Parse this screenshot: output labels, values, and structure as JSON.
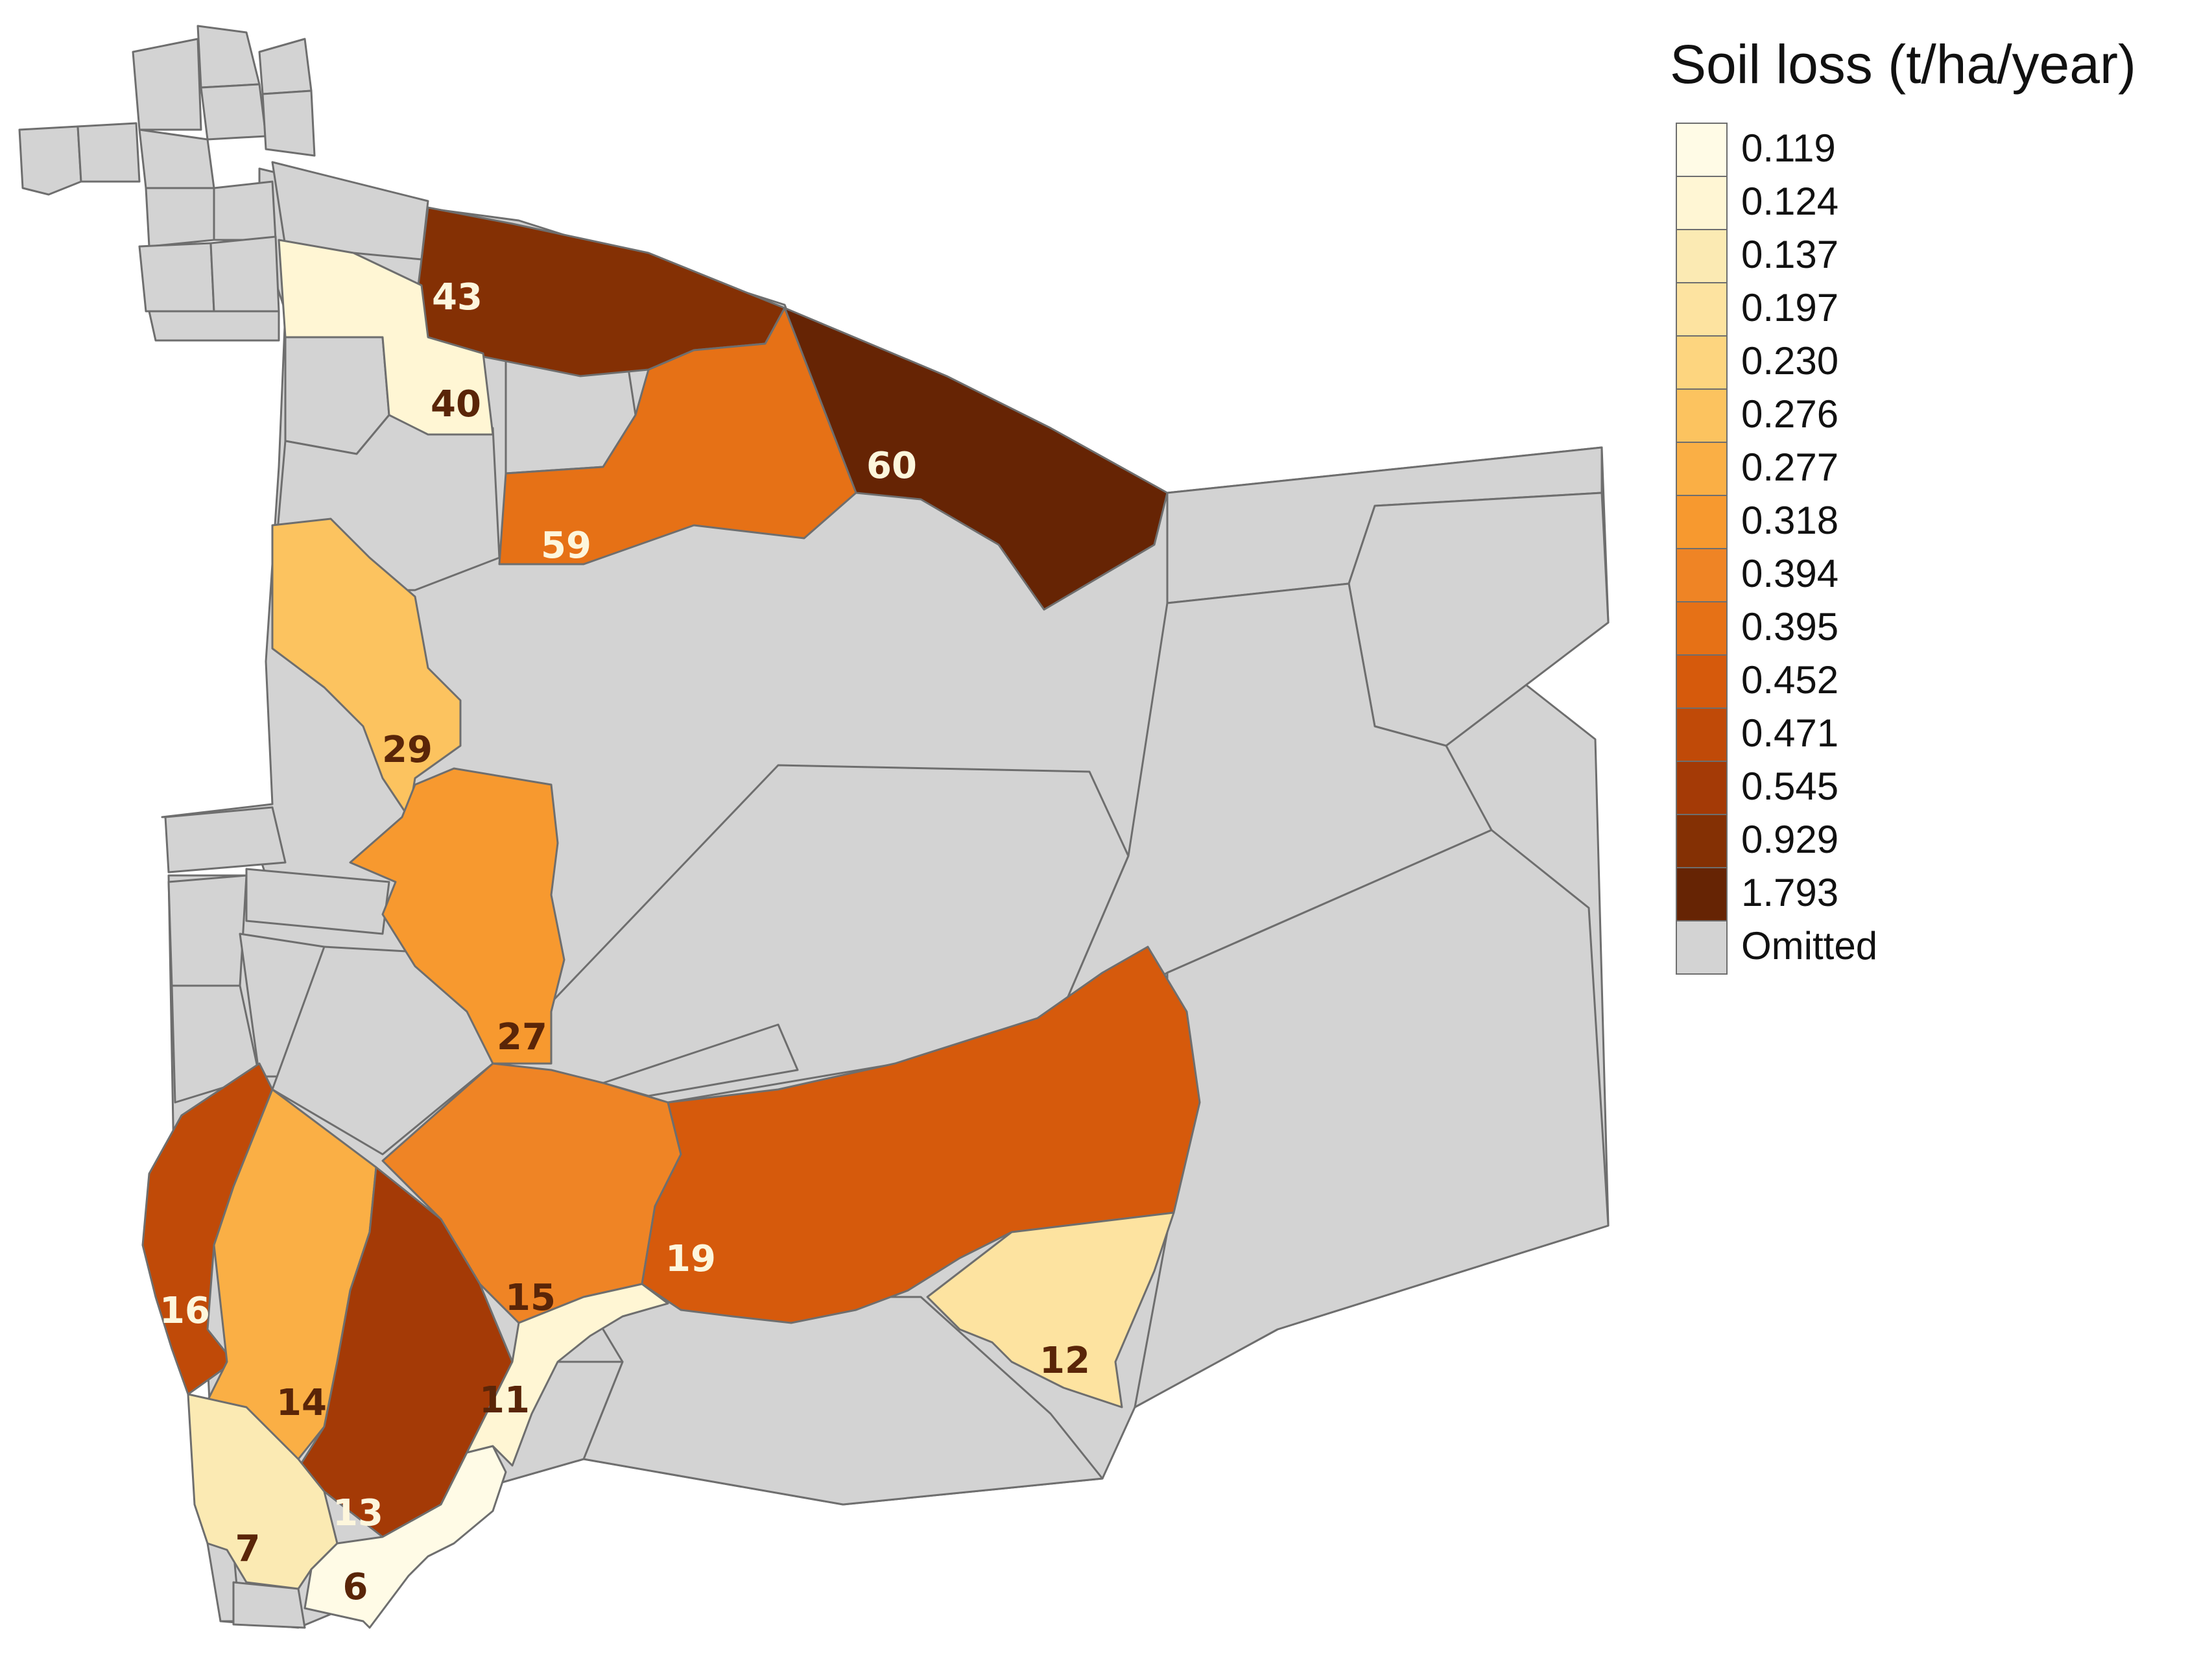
{
  "legend": {
    "title": "Soil loss (t/ha/year)",
    "items": [
      {
        "label": "0.119",
        "color": "#fffbe6"
      },
      {
        "label": "0.124",
        "color": "#fff6d4"
      },
      {
        "label": "0.137",
        "color": "#fbeab3"
      },
      {
        "label": "0.197",
        "color": "#fde3a0"
      },
      {
        "label": "0.230",
        "color": "#fdd57f"
      },
      {
        "label": "0.276",
        "color": "#fcc35f"
      },
      {
        "label": "0.277",
        "color": "#faaf45"
      },
      {
        "label": "0.318",
        "color": "#f7992f"
      },
      {
        "label": "0.394",
        "color": "#ef8425"
      },
      {
        "label": "0.395",
        "color": "#e67116"
      },
      {
        "label": "0.452",
        "color": "#d65a0c"
      },
      {
        "label": "0.471",
        "color": "#c04a08"
      },
      {
        "label": "0.545",
        "color": "#a43a06"
      },
      {
        "label": "0.929",
        "color": "#843004"
      },
      {
        "label": "1.793",
        "color": "#662404"
      },
      {
        "label": "Omitted",
        "color": "#d3d3d3"
      }
    ]
  },
  "watersheds": [
    {
      "label": "43",
      "color": "#843004",
      "text_color": "#fdf6dc"
    },
    {
      "label": "40",
      "color": "#fff6d4",
      "text_color": "#5a2508"
    },
    {
      "label": "60",
      "color": "#662404",
      "text_color": "#fdf6dc"
    },
    {
      "label": "59",
      "color": "#e67116",
      "text_color": "#fdf6dc"
    },
    {
      "label": "29",
      "color": "#fcc35f",
      "text_color": "#5a2508"
    },
    {
      "label": "27",
      "color": "#f7992f",
      "text_color": "#5a2508"
    },
    {
      "label": "16",
      "color": "#c04a08",
      "text_color": "#fdf6dc"
    },
    {
      "label": "14",
      "color": "#faaf45",
      "text_color": "#5a2508"
    },
    {
      "label": "15",
      "color": "#ef8425",
      "text_color": "#5a2508"
    },
    {
      "label": "13",
      "color": "#a43a06",
      "text_color": "#fdf6dc"
    },
    {
      "label": "19",
      "color": "#d65a0c",
      "text_color": "#fdf6dc"
    },
    {
      "label": "12",
      "color": "#fde3a0",
      "text_color": "#5a2508"
    },
    {
      "label": "11",
      "color": "#fff6d4",
      "text_color": "#5a2508"
    },
    {
      "label": "7",
      "color": "#fbeab3",
      "text_color": "#5a2508"
    },
    {
      "label": "6",
      "color": "#fffbe6",
      "text_color": "#5a2508"
    }
  ]
}
